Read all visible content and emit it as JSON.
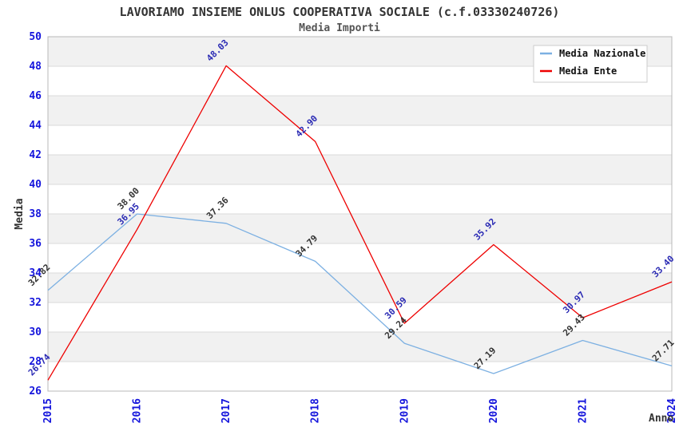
{
  "chart_data": {
    "type": "line",
    "title": "LAVORIAMO INSIEME ONLUS COOPERATIVA SOCIALE (c.f.03330240726)",
    "subtitle": "Media Importi",
    "xlabel": "Anno",
    "ylabel": "Media",
    "categories": [
      "2015",
      "2016",
      "2017",
      "2018",
      "2019",
      "2020",
      "2021",
      "2024"
    ],
    "ylim": [
      26,
      50
    ],
    "ytick_step": 2,
    "grid": true,
    "legend_position": "top-right",
    "band_fill_ranges": "alternating 2-unit horizontal bands, gray starting at 48-50",
    "series": [
      {
        "name": "Media Nazionale",
        "color": "#7cb0e2",
        "label_color": "#333333",
        "values": [
          32.82,
          38.0,
          37.36,
          34.79,
          29.24,
          27.19,
          29.43,
          27.71
        ]
      },
      {
        "name": "Media Ente",
        "color": "#ee0000",
        "label_color": "#2a2ab4",
        "values": [
          26.74,
          36.95,
          48.03,
          42.9,
          30.59,
          35.92,
          30.97,
          33.4
        ]
      }
    ],
    "colors": {
      "tick_label": "#1414dc",
      "band_gray": "#f1f1f1",
      "gridline": "#dadada",
      "plot_border": "#b8b8b8",
      "legend_border": "#cccccc",
      "legend_bg": "#ffffff"
    }
  }
}
